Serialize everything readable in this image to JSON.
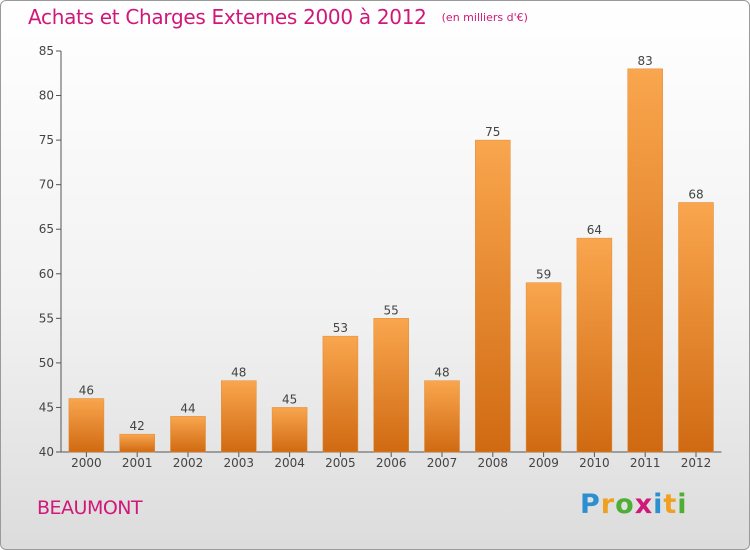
{
  "title": "Achats et Charges Externes 2000 à 2012",
  "unit": "(en milliers d'€)",
  "location": "BEAUMONT",
  "brand": {
    "letters": [
      "P",
      "r",
      "o",
      "x",
      "i",
      "t",
      "i"
    ],
    "colors": [
      "#2c8fd0",
      "#f0a020",
      "#4fae36",
      "#d0187a",
      "#2c8fd0",
      "#f0a020",
      "#4fae36"
    ]
  },
  "colors": {
    "bar_light": "#f9a64e",
    "bar_dark": "#d06a12",
    "title": "#d0187a"
  },
  "chart_data": {
    "type": "bar",
    "categories": [
      "2000",
      "2001",
      "2002",
      "2003",
      "2004",
      "2005",
      "2006",
      "2007",
      "2008",
      "2009",
      "2010",
      "2011",
      "2012"
    ],
    "values": [
      46,
      42,
      44,
      48,
      45,
      53,
      55,
      48,
      75,
      59,
      64,
      83,
      68
    ],
    "ylim": [
      40,
      85
    ],
    "yticks": [
      40,
      45,
      50,
      55,
      60,
      65,
      70,
      75,
      80,
      85
    ],
    "grid": false,
    "data_labels": true
  }
}
